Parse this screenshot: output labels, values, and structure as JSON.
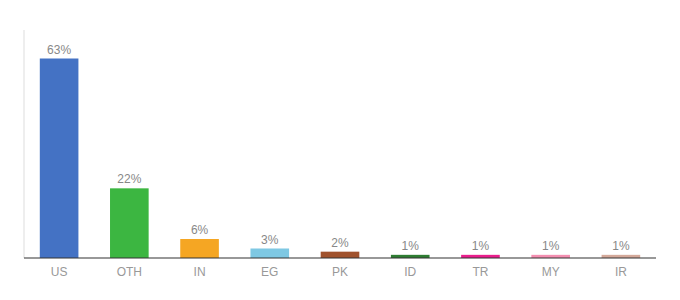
{
  "chart_data": {
    "type": "bar",
    "categories": [
      "US",
      "OTH",
      "IN",
      "EG",
      "PK",
      "ID",
      "TR",
      "MY",
      "IR"
    ],
    "values": [
      63,
      22,
      6,
      3,
      2,
      1,
      1,
      1,
      1
    ],
    "value_labels": [
      "63%",
      "22%",
      "6%",
      "3%",
      "2%",
      "1%",
      "1%",
      "1%",
      "1%"
    ],
    "colors": [
      "#4472c4",
      "#3cb641",
      "#f5a623",
      "#7ec8e3",
      "#a0522d",
      "#2e7d32",
      "#e91e8c",
      "#f48fb1",
      "#d4a99a"
    ],
    "ylim": [
      0,
      72
    ],
    "data_labels": true,
    "tick_labels": "x",
    "grid": false
  }
}
